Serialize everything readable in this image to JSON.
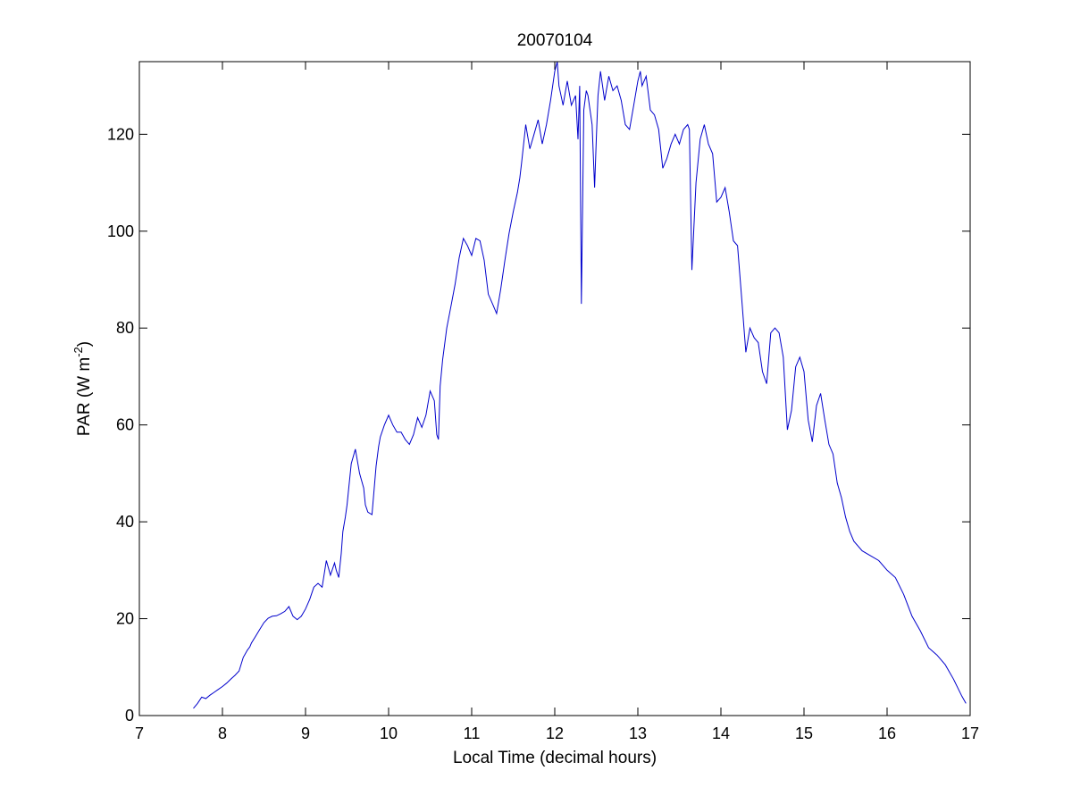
{
  "chart_data": {
    "type": "line",
    "title": "20070104",
    "xlabel": "Local Time (decimal hours)",
    "ylabel": {
      "text": "PAR (W m",
      "superscript": "-2",
      "suffix": ")"
    },
    "xlim": [
      7,
      17
    ],
    "ylim": [
      0,
      135
    ],
    "xticks": [
      7,
      8,
      9,
      10,
      11,
      12,
      13,
      14,
      15,
      16,
      17
    ],
    "yticks": [
      0,
      20,
      40,
      60,
      80,
      100,
      120
    ],
    "grid": false,
    "line_color": "#0000cc",
    "series": [
      {
        "x": [
          7.65,
          7.7,
          7.75,
          7.8,
          7.85,
          7.9,
          7.95,
          8.0,
          8.05,
          8.1,
          8.15,
          8.2,
          8.25,
          8.3,
          8.33,
          8.35,
          8.4,
          8.45,
          8.5,
          8.55,
          8.6,
          8.65,
          8.7,
          8.75,
          8.8,
          8.85,
          8.9,
          8.95,
          9.0,
          9.05,
          9.1,
          9.15,
          9.2,
          9.25,
          9.3,
          9.35,
          9.37,
          9.4,
          9.43,
          9.45,
          9.48,
          9.5,
          9.52,
          9.55,
          9.6,
          9.65,
          9.7,
          9.72,
          9.75,
          9.8,
          9.85,
          9.88,
          9.9,
          9.95,
          10.0,
          10.05,
          10.1,
          10.15,
          10.2,
          10.25,
          10.3,
          10.35,
          10.4,
          10.45,
          10.5,
          10.55,
          10.58,
          10.6,
          10.62,
          10.65,
          10.7,
          10.75,
          10.8,
          10.85,
          10.9,
          10.95,
          11.0,
          11.05,
          11.1,
          11.15,
          11.2,
          11.25,
          11.3,
          11.35,
          11.4,
          11.45,
          11.5,
          11.55,
          11.58,
          11.6,
          11.65,
          11.7,
          11.75,
          11.8,
          11.85,
          11.9,
          11.95,
          12.0,
          12.03,
          12.05,
          12.1,
          12.15,
          12.2,
          12.25,
          12.28,
          12.3,
          12.32,
          12.35,
          12.38,
          12.4,
          12.45,
          12.48,
          12.5,
          12.52,
          12.55,
          12.6,
          12.65,
          12.7,
          12.75,
          12.8,
          12.85,
          12.9,
          12.95,
          13.0,
          13.03,
          13.05,
          13.1,
          13.15,
          13.2,
          13.25,
          13.3,
          13.35,
          13.4,
          13.45,
          13.5,
          13.55,
          13.6,
          13.62,
          13.65,
          13.7,
          13.75,
          13.8,
          13.85,
          13.9,
          13.95,
          14.0,
          14.05,
          14.1,
          14.15,
          14.2,
          14.25,
          14.3,
          14.35,
          14.4,
          14.45,
          14.5,
          14.55,
          14.6,
          14.65,
          14.7,
          14.75,
          14.8,
          14.85,
          14.9,
          14.95,
          15.0,
          15.05,
          15.1,
          15.15,
          15.2,
          15.25,
          15.3,
          15.35,
          15.4,
          15.45,
          15.5,
          15.55,
          15.6,
          15.7,
          15.8,
          15.9,
          16.0,
          16.1,
          16.2,
          16.3,
          16.4,
          16.5,
          16.6,
          16.7,
          16.8,
          16.9,
          16.95
        ],
        "y": [
          1.5,
          2.5,
          3.8,
          3.5,
          4.2,
          4.8,
          5.4,
          6.0,
          6.7,
          7.5,
          8.3,
          9.2,
          12.0,
          13.5,
          14.2,
          15.0,
          16.4,
          17.8,
          19.2,
          20.1,
          20.5,
          20.6,
          21.0,
          21.5,
          22.5,
          20.5,
          19.8,
          20.5,
          22.0,
          24.0,
          26.5,
          27.3,
          26.5,
          32.0,
          29.0,
          31.5,
          30.0,
          28.5,
          33.5,
          38.0,
          41.0,
          43.5,
          47.0,
          52.0,
          55.0,
          50.0,
          47.0,
          43.5,
          42.0,
          41.5,
          51.5,
          55.5,
          57.5,
          60.0,
          62.0,
          60.0,
          58.5,
          58.5,
          57.0,
          56.0,
          58.0,
          61.5,
          59.5,
          62.0,
          67.0,
          65.0,
          58.0,
          57.0,
          68.0,
          73.5,
          80.0,
          84.5,
          89.0,
          94.5,
          98.5,
          97.0,
          95.0,
          98.5,
          98.0,
          94.0,
          87.0,
          85.0,
          83.0,
          88.0,
          94.0,
          99.5,
          104.0,
          108.0,
          111.0,
          114.0,
          122.0,
          117.0,
          120.0,
          123.0,
          118.0,
          122.0,
          127.0,
          133.0,
          135.0,
          130.0,
          126.0,
          131.0,
          126.0,
          128.0,
          119.0,
          130.0,
          85.0,
          125.0,
          129.0,
          128.0,
          122.0,
          109.0,
          119.0,
          128.0,
          133.0,
          127.0,
          132.0,
          129.0,
          130.0,
          127.0,
          122.0,
          121.0,
          126.0,
          131.0,
          133.0,
          130.0,
          132.0,
          125.0,
          124.0,
          121.0,
          113.0,
          115.0,
          118.0,
          120.0,
          118.0,
          121.0,
          122.0,
          121.0,
          92.0,
          110.0,
          119.0,
          122.0,
          118.0,
          116.0,
          106.0,
          107.0,
          109.0,
          104.0,
          98.0,
          97.0,
          86.0,
          75.0,
          80.0,
          78.0,
          77.0,
          71.0,
          68.5,
          79.0,
          80.0,
          79.0,
          74.0,
          59.0,
          63.0,
          72.0,
          74.0,
          71.0,
          61.0,
          56.5,
          64.0,
          66.5,
          61.0,
          56.0,
          54.0,
          48.0,
          45.0,
          41.0,
          38.0,
          36.0,
          34.0,
          33.0,
          32.0,
          30.0,
          28.5,
          25.0,
          20.5,
          17.5,
          14.0,
          12.5,
          10.5,
          7.5,
          4.0,
          2.5
        ]
      }
    ]
  }
}
